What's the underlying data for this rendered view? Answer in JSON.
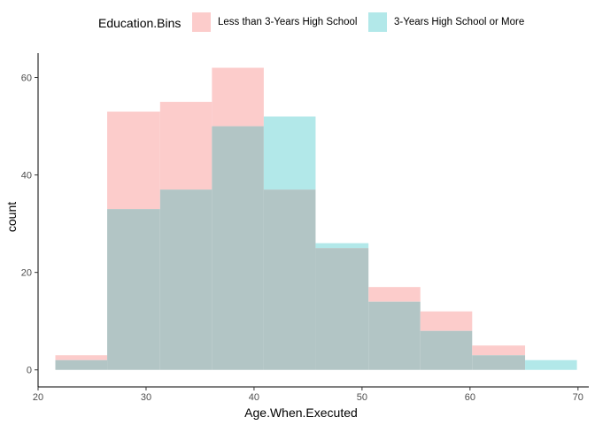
{
  "chart_data": {
    "type": "histogram",
    "xlabel": "Age.When.Executed",
    "ylabel": "count",
    "xlim": [
      20,
      71
    ],
    "ylim": [
      -3.5,
      65
    ],
    "x_ticks": [
      20,
      30,
      40,
      50,
      60,
      70
    ],
    "y_ticks": [
      0,
      20,
      40,
      60
    ],
    "bin_edges": [
      21.6,
      26.4,
      31.3,
      36.1,
      40.9,
      45.7,
      50.6,
      55.4,
      60.2,
      65.1,
      69.9
    ],
    "legend": {
      "title": "Education.Bins",
      "position": "top"
    },
    "overlap_color": "#b2c5c5",
    "series": [
      {
        "name": "Less than 3-Years High School",
        "color": "#f8766d",
        "fill": "#fccccb",
        "values": [
          3,
          53,
          55,
          62,
          37,
          25,
          17,
          12,
          5,
          0
        ]
      },
      {
        "name": "3-Years High School or More",
        "color": "#00bfc4",
        "fill": "#b2e8e9",
        "values": [
          2,
          33,
          37,
          50,
          52,
          26,
          14,
          8,
          3,
          2
        ]
      }
    ]
  }
}
